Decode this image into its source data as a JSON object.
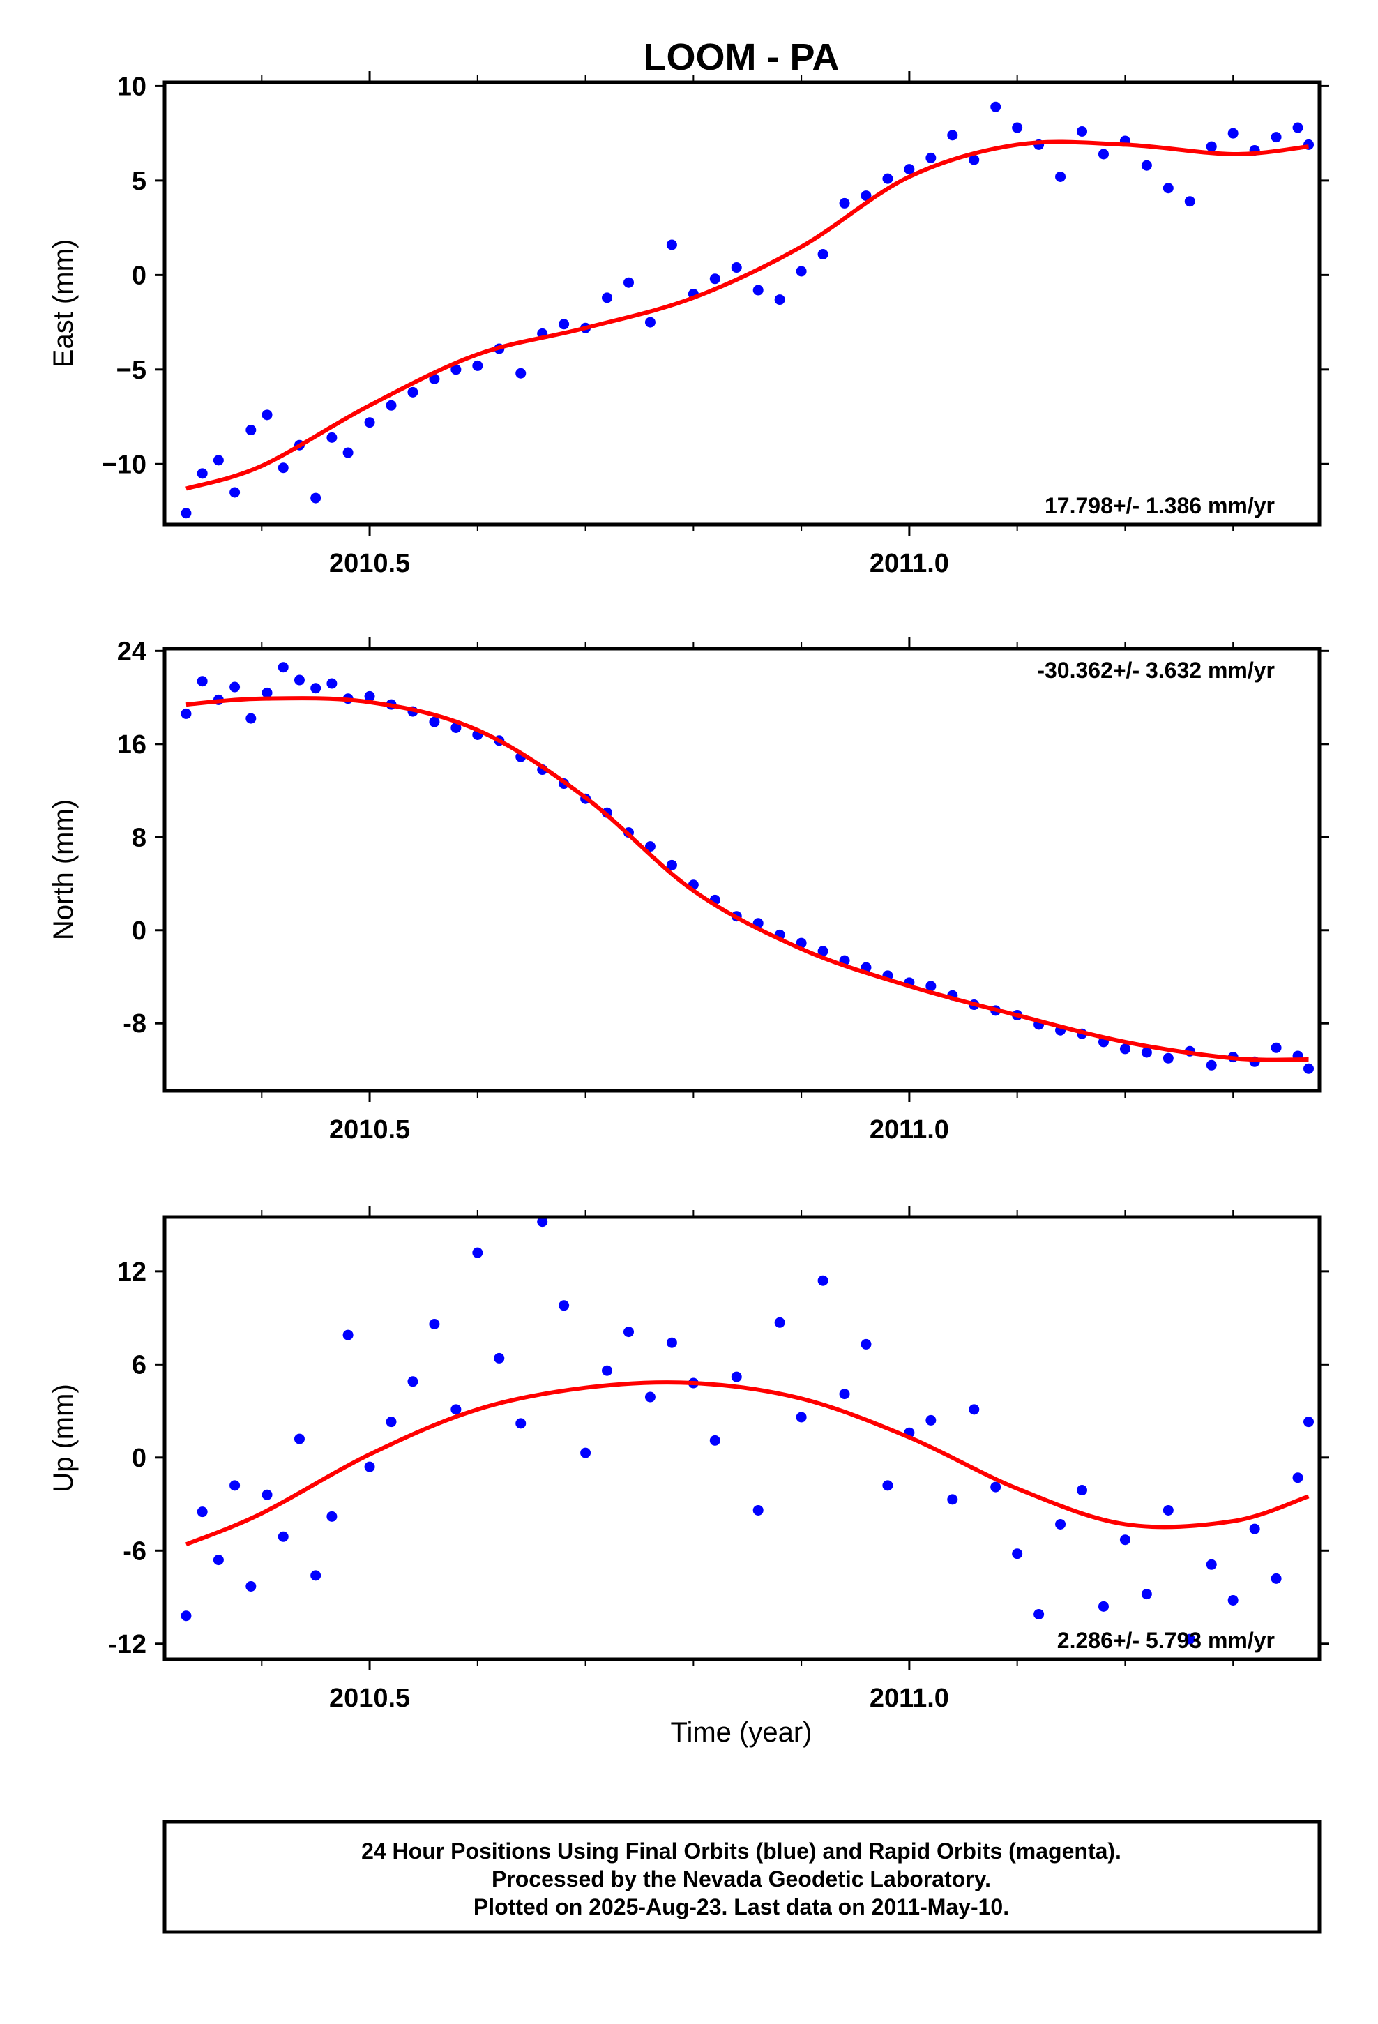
{
  "chart_data": {
    "type": "scatter",
    "title": "LOOM - PA",
    "xlabel": "Time (year)",
    "xlim": [
      2010.31,
      2011.38
    ],
    "x_ticks": [
      "2010.5",
      "2011.0"
    ],
    "series_colors": {
      "points": "#0000ff",
      "fit": "#ff0000"
    },
    "panels": [
      {
        "ylabel": "East (mm)",
        "ylim": [
          -13.2,
          10.2
        ],
        "y_ticks": [
          "10",
          "5",
          "0",
          "−5",
          "−10"
        ],
        "y_tick_values": [
          10,
          5,
          0,
          -5,
          -10
        ],
        "rate_label": "17.798+/- 1.386 mm/yr",
        "rate_position": "bottom-right",
        "points": {
          "x": [
            2010.33,
            2010.345,
            2010.36,
            2010.375,
            2010.39,
            2010.405,
            2010.42,
            2010.435,
            2010.45,
            2010.465,
            2010.48,
            2010.5,
            2010.52,
            2010.54,
            2010.56,
            2010.58,
            2010.6,
            2010.62,
            2010.64,
            2010.66,
            2010.68,
            2010.7,
            2010.72,
            2010.74,
            2010.76,
            2010.78,
            2010.8,
            2010.82,
            2010.84,
            2010.86,
            2010.88,
            2010.9,
            2010.92,
            2010.94,
            2010.96,
            2010.98,
            2011.0,
            2011.02,
            2011.04,
            2011.06,
            2011.08,
            2011.1,
            2011.12,
            2011.14,
            2011.16,
            2011.18,
            2011.2,
            2011.22,
            2011.24,
            2011.26,
            2011.28,
            2011.3,
            2011.32,
            2011.34,
            2011.36,
            2011.37
          ],
          "y": [
            -12.6,
            -10.5,
            -9.8,
            -11.5,
            -8.2,
            -7.4,
            -10.2,
            -9.0,
            -11.8,
            -8.6,
            -9.4,
            -7.8,
            -6.9,
            -6.2,
            -5.5,
            -5.0,
            -4.8,
            -3.9,
            -5.2,
            -3.1,
            -2.6,
            -2.8,
            -1.2,
            -0.4,
            -2.5,
            1.6,
            -1.0,
            -0.2,
            0.4,
            -0.8,
            -1.3,
            0.2,
            1.1,
            3.8,
            4.2,
            5.1,
            5.6,
            6.2,
            7.4,
            6.1,
            8.9,
            7.8,
            6.9,
            5.2,
            7.6,
            6.4,
            7.1,
            5.8,
            4.6,
            3.9,
            6.8,
            7.5,
            6.6,
            7.3,
            7.8,
            6.9
          ]
        },
        "fit": {
          "x": [
            2010.33,
            2010.4,
            2010.5,
            2010.6,
            2010.7,
            2010.8,
            2010.9,
            2011.0,
            2011.1,
            2011.2,
            2011.3,
            2011.37
          ],
          "y": [
            -11.3,
            -10.1,
            -6.9,
            -4.2,
            -2.8,
            -1.2,
            1.5,
            5.2,
            6.9,
            6.9,
            6.4,
            6.8
          ]
        }
      },
      {
        "ylabel": "North (mm)",
        "ylim": [
          -13.8,
          24.2
        ],
        "y_ticks": [
          "24",
          "16",
          "8",
          "0",
          "-8"
        ],
        "y_tick_values": [
          24,
          16,
          8,
          0,
          -8
        ],
        "rate_label": "-30.362+/- 3.632 mm/yr",
        "rate_position": "top-right",
        "points": {
          "x": [
            2010.33,
            2010.345,
            2010.36,
            2010.375,
            2010.39,
            2010.405,
            2010.42,
            2010.435,
            2010.45,
            2010.465,
            2010.48,
            2010.5,
            2010.52,
            2010.54,
            2010.56,
            2010.58,
            2010.6,
            2010.62,
            2010.64,
            2010.66,
            2010.68,
            2010.7,
            2010.72,
            2010.74,
            2010.76,
            2010.78,
            2010.8,
            2010.82,
            2010.84,
            2010.86,
            2010.88,
            2010.9,
            2010.92,
            2010.94,
            2010.96,
            2010.98,
            2011.0,
            2011.02,
            2011.04,
            2011.06,
            2011.08,
            2011.1,
            2011.12,
            2011.14,
            2011.16,
            2011.18,
            2011.2,
            2011.22,
            2011.24,
            2011.26,
            2011.28,
            2011.3,
            2011.32,
            2011.34,
            2011.36,
            2011.37
          ],
          "y": [
            18.6,
            21.4,
            19.8,
            20.9,
            18.2,
            20.4,
            22.6,
            21.5,
            20.8,
            21.2,
            19.9,
            20.1,
            19.4,
            18.8,
            17.9,
            17.4,
            16.8,
            16.3,
            14.9,
            13.8,
            12.6,
            11.3,
            10.1,
            8.4,
            7.2,
            5.6,
            3.9,
            2.6,
            1.2,
            0.6,
            -0.4,
            -1.1,
            -1.8,
            -2.6,
            -3.2,
            -3.9,
            -4.5,
            -4.8,
            -5.6,
            -6.4,
            -6.9,
            -7.3,
            -8.1,
            -8.6,
            -8.9,
            -9.6,
            -10.2,
            -10.5,
            -11.0,
            -10.4,
            -11.6,
            -10.9,
            -11.3,
            -10.1,
            -10.8,
            -11.9
          ]
        },
        "fit": {
          "x": [
            2010.33,
            2010.4,
            2010.5,
            2010.6,
            2010.7,
            2010.8,
            2010.9,
            2011.0,
            2011.1,
            2011.2,
            2011.3,
            2011.37
          ],
          "y": [
            19.4,
            19.9,
            19.6,
            17.2,
            11.4,
            3.4,
            -1.6,
            -4.8,
            -7.3,
            -9.6,
            -11.0,
            -11.1
          ]
        }
      },
      {
        "ylabel": "Up (mm)",
        "ylim": [
          -13.0,
          15.5
        ],
        "y_ticks": [
          "12",
          "6",
          "0",
          "-6",
          "-12"
        ],
        "y_tick_values": [
          12,
          6,
          0,
          -6,
          -12
        ],
        "rate_label": "2.286+/- 5.793 mm/yr",
        "rate_position": "bottom-right",
        "points": {
          "x": [
            2010.33,
            2010.345,
            2010.36,
            2010.375,
            2010.39,
            2010.405,
            2010.42,
            2010.435,
            2010.45,
            2010.465,
            2010.48,
            2010.5,
            2010.52,
            2010.54,
            2010.56,
            2010.58,
            2010.6,
            2010.62,
            2010.64,
            2010.66,
            2010.68,
            2010.7,
            2010.72,
            2010.74,
            2010.76,
            2010.78,
            2010.8,
            2010.82,
            2010.84,
            2010.86,
            2010.88,
            2010.9,
            2010.92,
            2010.94,
            2010.96,
            2010.98,
            2011.0,
            2011.02,
            2011.04,
            2011.06,
            2011.08,
            2011.1,
            2011.12,
            2011.14,
            2011.16,
            2011.18,
            2011.2,
            2011.22,
            2011.24,
            2011.26,
            2011.28,
            2011.3,
            2011.32,
            2011.34,
            2011.36,
            2011.37
          ],
          "y": [
            -10.2,
            -3.5,
            -6.6,
            -1.8,
            -8.3,
            -2.4,
            -5.1,
            1.2,
            -7.6,
            -3.8,
            7.9,
            -0.6,
            2.3,
            4.9,
            8.6,
            3.1,
            13.2,
            6.4,
            2.2,
            15.2,
            9.8,
            0.3,
            5.6,
            8.1,
            3.9,
            7.4,
            4.8,
            1.1,
            5.2,
            -3.4,
            8.7,
            2.6,
            11.4,
            4.1,
            7.3,
            -1.8,
            1.6,
            2.4,
            -2.7,
            3.1,
            -1.9,
            -6.2,
            -10.1,
            -4.3,
            -2.1,
            -9.6,
            -5.3,
            -8.8,
            -3.4,
            -11.7,
            -6.9,
            -9.2,
            -4.6,
            -7.8,
            -1.3,
            2.3
          ]
        },
        "fit": {
          "x": [
            2010.33,
            2010.4,
            2010.5,
            2010.6,
            2010.7,
            2010.8,
            2010.9,
            2011.0,
            2011.1,
            2011.2,
            2011.3,
            2011.37
          ],
          "y": [
            -5.6,
            -3.6,
            0.2,
            3.1,
            4.5,
            4.8,
            3.8,
            1.3,
            -2.0,
            -4.3,
            -4.1,
            -2.5
          ]
        }
      }
    ]
  },
  "footer": {
    "line1": "24 Hour Positions Using Final Orbits (blue) and Rapid Orbits (magenta).",
    "line2": "Processed by the Nevada Geodetic Laboratory.",
    "line3": "Plotted on 2025-Aug-23. Last data on 2011-May-10."
  }
}
